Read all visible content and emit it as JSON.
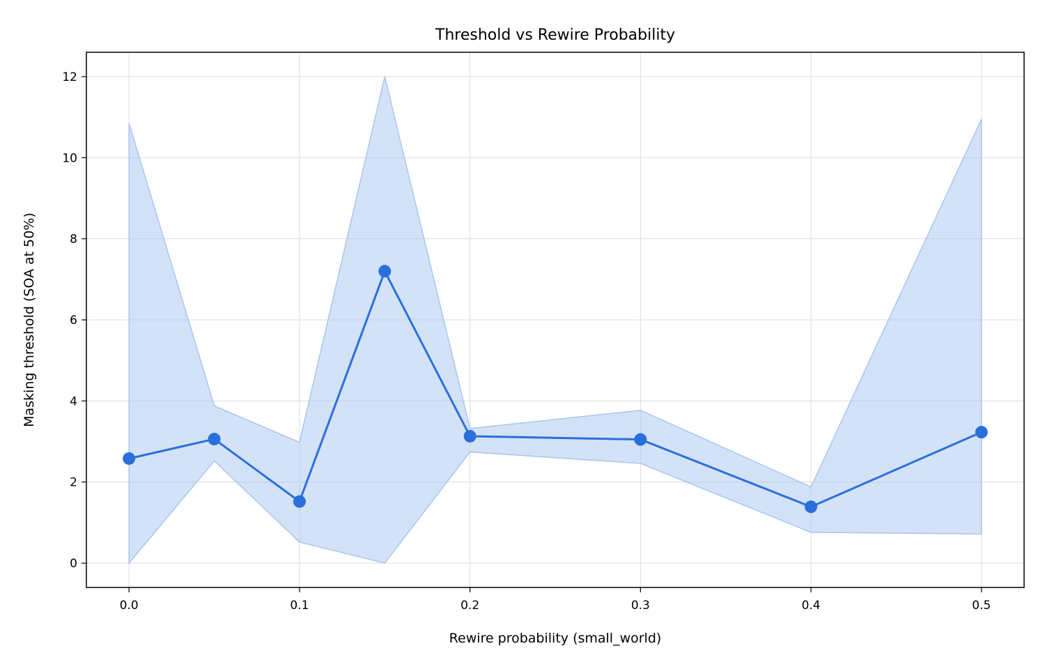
{
  "chart_data": {
    "type": "line",
    "title": "Threshold vs Rewire Probability",
    "xlabel": "Rewire probability (small_world)",
    "ylabel": "Masking threshold (SOA at 50%)",
    "xlim": [
      -0.025,
      0.525
    ],
    "ylim": [
      -0.6,
      12.6
    ],
    "x_ticks": [
      0.0,
      0.1,
      0.2,
      0.3,
      0.4,
      0.5
    ],
    "x_tick_labels": [
      "0.0",
      "0.1",
      "0.2",
      "0.3",
      "0.4",
      "0.5"
    ],
    "y_ticks": [
      0,
      2,
      4,
      6,
      8,
      10,
      12
    ],
    "y_tick_labels": [
      "0",
      "2",
      "4",
      "6",
      "8",
      "10",
      "12"
    ],
    "grid": true,
    "series": [
      {
        "x": [
          0.0,
          0.05,
          0.1,
          0.15,
          0.2,
          0.3,
          0.4,
          0.5
        ],
        "values": [
          2.58,
          3.06,
          1.52,
          7.2,
          3.13,
          3.05,
          1.39,
          3.23
        ],
        "band_lower": [
          0.0,
          2.52,
          0.52,
          0.0,
          2.74,
          2.46,
          0.76,
          0.72
        ],
        "band_upper": [
          10.85,
          3.88,
          2.98,
          12.0,
          3.32,
          3.77,
          1.88,
          10.95
        ],
        "color": "#2a6fdb",
        "band_color": "#a8c5f0"
      }
    ]
  }
}
